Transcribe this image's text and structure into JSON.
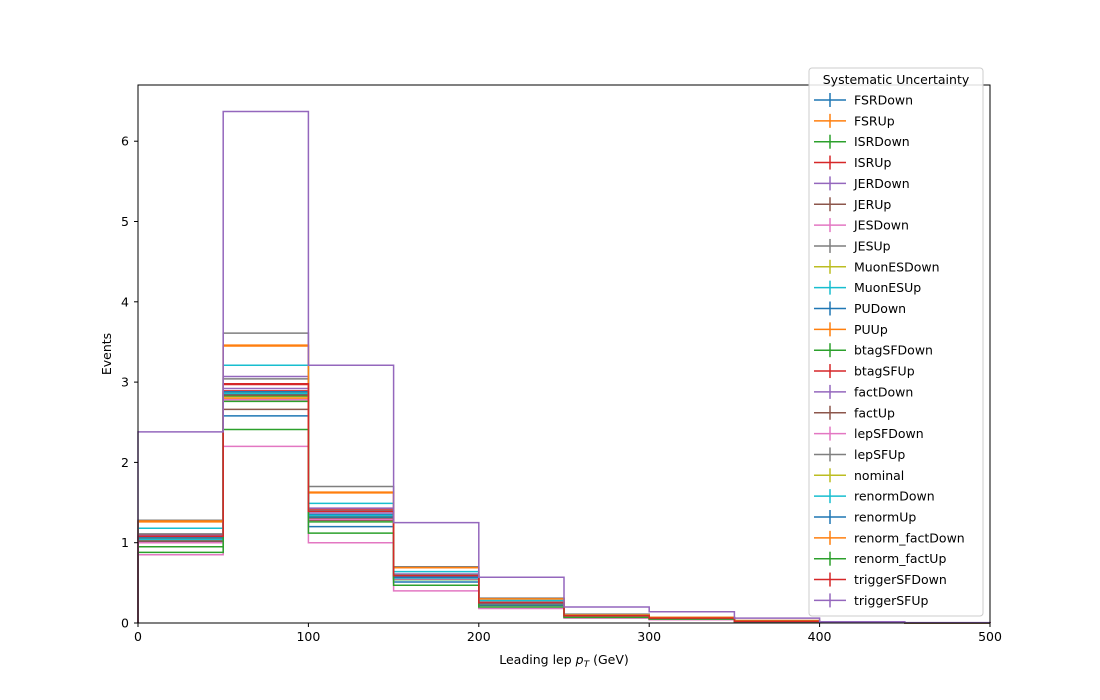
{
  "chart_data": {
    "type": "histogram-step",
    "xlabel_main": "Leading lep ",
    "xlabel_math_base": "p",
    "xlabel_math_sub": "T",
    "xlabel_unit": " (GeV)",
    "ylabel": "Events",
    "xlim": [
      0,
      500
    ],
    "ylim": [
      0,
      6.7
    ],
    "x_ticks": [
      "0",
      "100",
      "200",
      "300",
      "400",
      "500"
    ],
    "y_ticks": [
      "0",
      "1",
      "2",
      "3",
      "4",
      "5",
      "6"
    ],
    "bin_edges": [
      0,
      50,
      100,
      150,
      200,
      250,
      300,
      350,
      400,
      450,
      500
    ],
    "legend_title": "Systematic Uncertainty",
    "legend_placement": "top-right",
    "grid": false,
    "series": [
      {
        "name": "FSRDown",
        "color": "#1f77b4",
        "values": [
          1.02,
          2.58,
          1.2,
          0.51,
          0.22,
          0.08,
          0.05,
          0.02,
          0.005,
          0.002
        ]
      },
      {
        "name": "FSRUp",
        "color": "#ff7f0e",
        "values": [
          1.26,
          3.45,
          1.62,
          0.69,
          0.3,
          0.1,
          0.07,
          0.03,
          0.007,
          0.002
        ]
      },
      {
        "name": "ISRDown",
        "color": "#2ca02c",
        "values": [
          1.0,
          2.76,
          1.26,
          0.54,
          0.23,
          0.08,
          0.05,
          0.02,
          0.005,
          0.002
        ]
      },
      {
        "name": "ISRUp",
        "color": "#d62728",
        "values": [
          1.07,
          2.97,
          1.4,
          0.59,
          0.25,
          0.09,
          0.06,
          0.02,
          0.005,
          0.002
        ]
      },
      {
        "name": "JERDown",
        "color": "#9467bd",
        "values": [
          1.05,
          2.92,
          1.37,
          0.58,
          0.25,
          0.09,
          0.06,
          0.02,
          0.005,
          0.002
        ]
      },
      {
        "name": "JERUp",
        "color": "#8c564b",
        "values": [
          1.03,
          2.66,
          1.28,
          0.55,
          0.24,
          0.09,
          0.05,
          0.02,
          0.005,
          0.002
        ]
      },
      {
        "name": "JESDown",
        "color": "#e377c2",
        "values": [
          0.85,
          2.2,
          1.0,
          0.4,
          0.18,
          0.06,
          0.04,
          0.015,
          0.004,
          0.001
        ]
      },
      {
        "name": "JESUp",
        "color": "#7f7f7f",
        "values": [
          1.28,
          3.61,
          1.7,
          0.7,
          0.31,
          0.11,
          0.07,
          0.03,
          0.007,
          0.002
        ]
      },
      {
        "name": "MuonESDown",
        "color": "#bcbd22",
        "values": [
          1.06,
          2.82,
          1.33,
          0.56,
          0.24,
          0.09,
          0.06,
          0.02,
          0.005,
          0.002
        ]
      },
      {
        "name": "MuonESUp",
        "color": "#17becf",
        "values": [
          1.18,
          3.21,
          1.49,
          0.64,
          0.28,
          0.1,
          0.06,
          0.02,
          0.006,
          0.002
        ]
      },
      {
        "name": "PUDown",
        "color": "#1f77b4",
        "values": [
          1.08,
          2.85,
          1.35,
          0.57,
          0.24,
          0.09,
          0.06,
          0.02,
          0.005,
          0.002
        ]
      },
      {
        "name": "PUUp",
        "color": "#ff7f0e",
        "values": [
          1.04,
          2.8,
          1.31,
          0.55,
          0.24,
          0.09,
          0.05,
          0.02,
          0.005,
          0.002
        ]
      },
      {
        "name": "btagSFDown",
        "color": "#2ca02c",
        "values": [
          0.95,
          2.83,
          1.31,
          0.56,
          0.24,
          0.09,
          0.05,
          0.02,
          0.005,
          0.002
        ]
      },
      {
        "name": "btagSFUp",
        "color": "#d62728",
        "values": [
          1.1,
          2.89,
          1.42,
          0.6,
          0.26,
          0.09,
          0.06,
          0.02,
          0.005,
          0.002
        ]
      },
      {
        "name": "factDown",
        "color": "#9467bd",
        "values": [
          1.09,
          3.07,
          1.43,
          0.61,
          0.26,
          0.09,
          0.06,
          0.02,
          0.005,
          0.002
        ]
      },
      {
        "name": "factUp",
        "color": "#8c564b",
        "values": [
          1.01,
          2.84,
          1.3,
          0.55,
          0.23,
          0.08,
          0.05,
          0.02,
          0.005,
          0.002
        ]
      },
      {
        "name": "lepSFDown",
        "color": "#e377c2",
        "values": [
          1.0,
          2.78,
          1.29,
          0.55,
          0.24,
          0.08,
          0.05,
          0.02,
          0.005,
          0.002
        ]
      },
      {
        "name": "lepSFUp",
        "color": "#7f7f7f",
        "values": [
          1.11,
          3.04,
          1.4,
          0.6,
          0.26,
          0.09,
          0.06,
          0.02,
          0.005,
          0.002
        ]
      },
      {
        "name": "nominal",
        "color": "#bcbd22",
        "values": [
          1.05,
          2.87,
          1.33,
          0.57,
          0.25,
          0.09,
          0.06,
          0.02,
          0.005,
          0.002
        ]
      },
      {
        "name": "renormDown",
        "color": "#17becf",
        "values": [
          1.04,
          2.86,
          1.34,
          0.56,
          0.24,
          0.09,
          0.06,
          0.02,
          0.005,
          0.002
        ]
      },
      {
        "name": "renormUp",
        "color": "#1f77b4",
        "values": [
          1.06,
          2.88,
          1.32,
          0.57,
          0.25,
          0.09,
          0.06,
          0.02,
          0.005,
          0.002
        ]
      },
      {
        "name": "renorm_factDown",
        "color": "#ff7f0e",
        "values": [
          1.27,
          3.46,
          1.63,
          0.69,
          0.3,
          0.1,
          0.07,
          0.03,
          0.007,
          0.002
        ]
      },
      {
        "name": "renorm_factUp",
        "color": "#2ca02c",
        "values": [
          0.88,
          2.41,
          1.12,
          0.47,
          0.2,
          0.07,
          0.05,
          0.02,
          0.004,
          0.001
        ]
      },
      {
        "name": "triggerSFDown",
        "color": "#d62728",
        "values": [
          1.08,
          2.98,
          1.39,
          0.59,
          0.25,
          0.09,
          0.06,
          0.02,
          0.005,
          0.002
        ]
      },
      {
        "name": "triggerSFUp",
        "color": "#9467bd",
        "values": [
          2.38,
          6.37,
          3.21,
          1.25,
          0.57,
          0.2,
          0.14,
          0.06,
          0.015,
          0.004
        ]
      }
    ]
  }
}
